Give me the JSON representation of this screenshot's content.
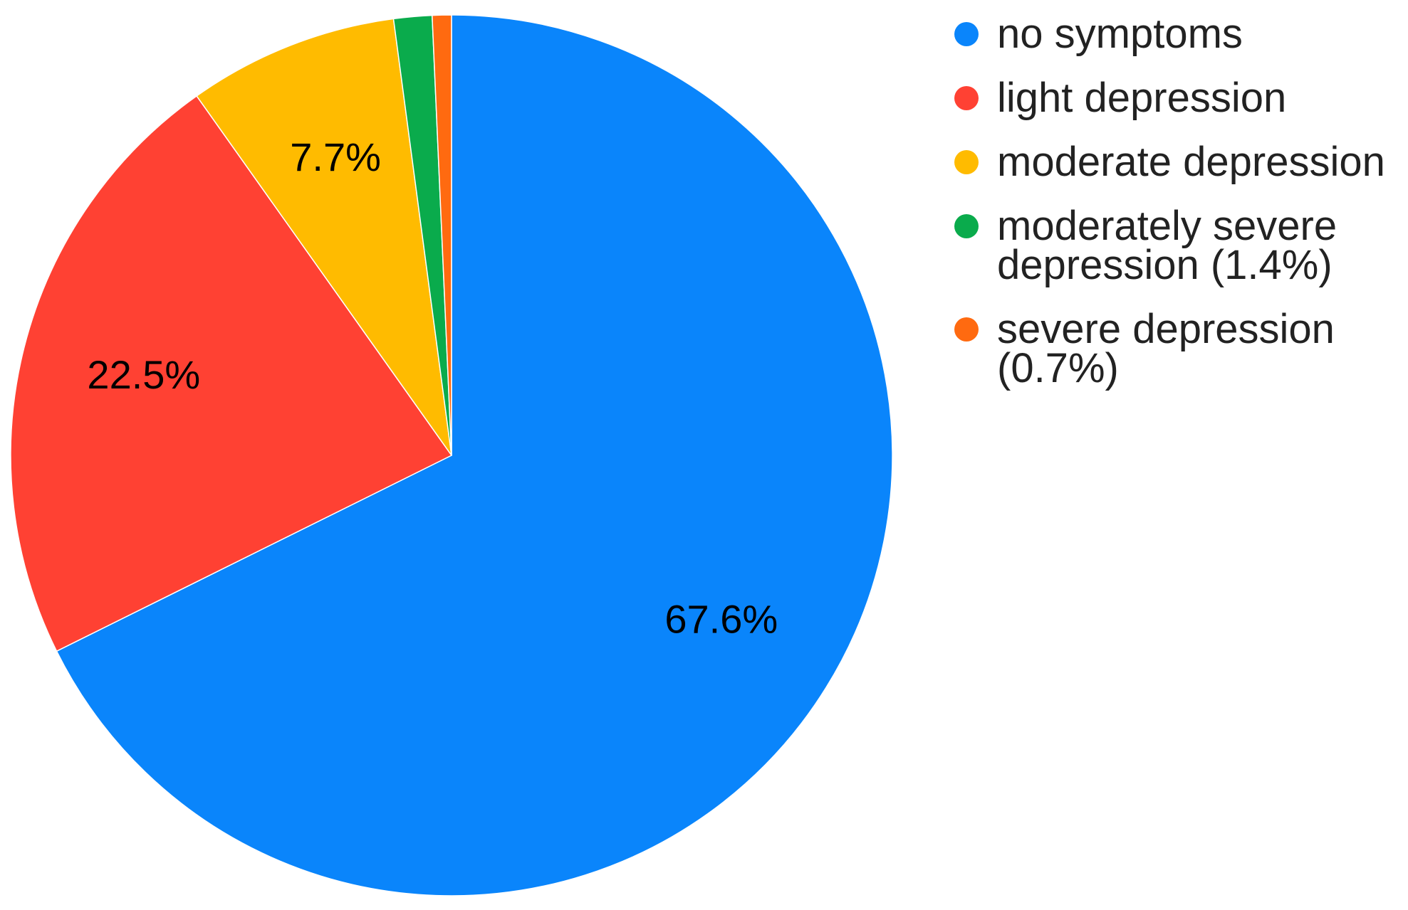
{
  "chart_data": {
    "type": "pie",
    "categories": [
      "no symptoms",
      "light depression",
      "moderate depression",
      "moderately severe depression (1.4%)",
      "severe depression (0.7%)"
    ],
    "values": [
      67.6,
      22.5,
      7.7,
      1.4,
      0.7
    ],
    "value_labels": [
      "67.6%",
      "22.5%",
      "7.7%",
      null,
      null
    ],
    "colors": [
      "#0a85fb",
      "#ff4133",
      "#ffbb00",
      "#0aab4c",
      "#ff6a10"
    ],
    "legend": "right"
  }
}
